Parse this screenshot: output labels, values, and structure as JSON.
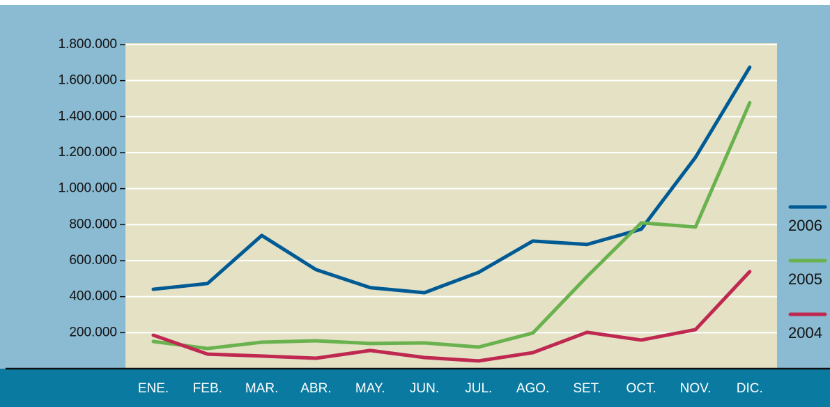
{
  "chart_data": {
    "type": "line",
    "categories": [
      "ENE.",
      "FEB.",
      "MAR.",
      "ABR.",
      "MAY.",
      "JUN.",
      "JUL.",
      "AGO.",
      "SET.",
      "OCT.",
      "NOV.",
      "DIC."
    ],
    "series": [
      {
        "name": "2006",
        "color": "#005a94",
        "values": [
          441000,
          473000,
          740000,
          550000,
          450000,
          422000,
          535000,
          709000,
          690000,
          775000,
          1174000,
          1674000
        ]
      },
      {
        "name": "2005",
        "color": "#69b24e",
        "values": [
          151000,
          112000,
          147000,
          155000,
          140000,
          143000,
          120000,
          198000,
          512000,
          810000,
          787000,
          1477000
        ]
      },
      {
        "name": "2004",
        "color": "#bf2850",
        "values": [
          186000,
          81000,
          70000,
          58000,
          101000,
          62000,
          43000,
          89000,
          202000,
          159000,
          217000,
          539000
        ]
      }
    ],
    "ylim": [
      0,
      1800000
    ],
    "yticks": [
      {
        "value": 200000,
        "label": "200.000"
      },
      {
        "value": 400000,
        "label": "400.000"
      },
      {
        "value": 600000,
        "label": "600.000"
      },
      {
        "value": 800000,
        "label": "800.000"
      },
      {
        "value": 1000000,
        "label": "1.000.000"
      },
      {
        "value": 1200000,
        "label": "1.200.000"
      },
      {
        "value": 1400000,
        "label": "1.400.000"
      },
      {
        "value": 1600000,
        "label": "1.600.000"
      },
      {
        "value": 1800000,
        "label": "1.800.000"
      }
    ],
    "grid": true
  }
}
